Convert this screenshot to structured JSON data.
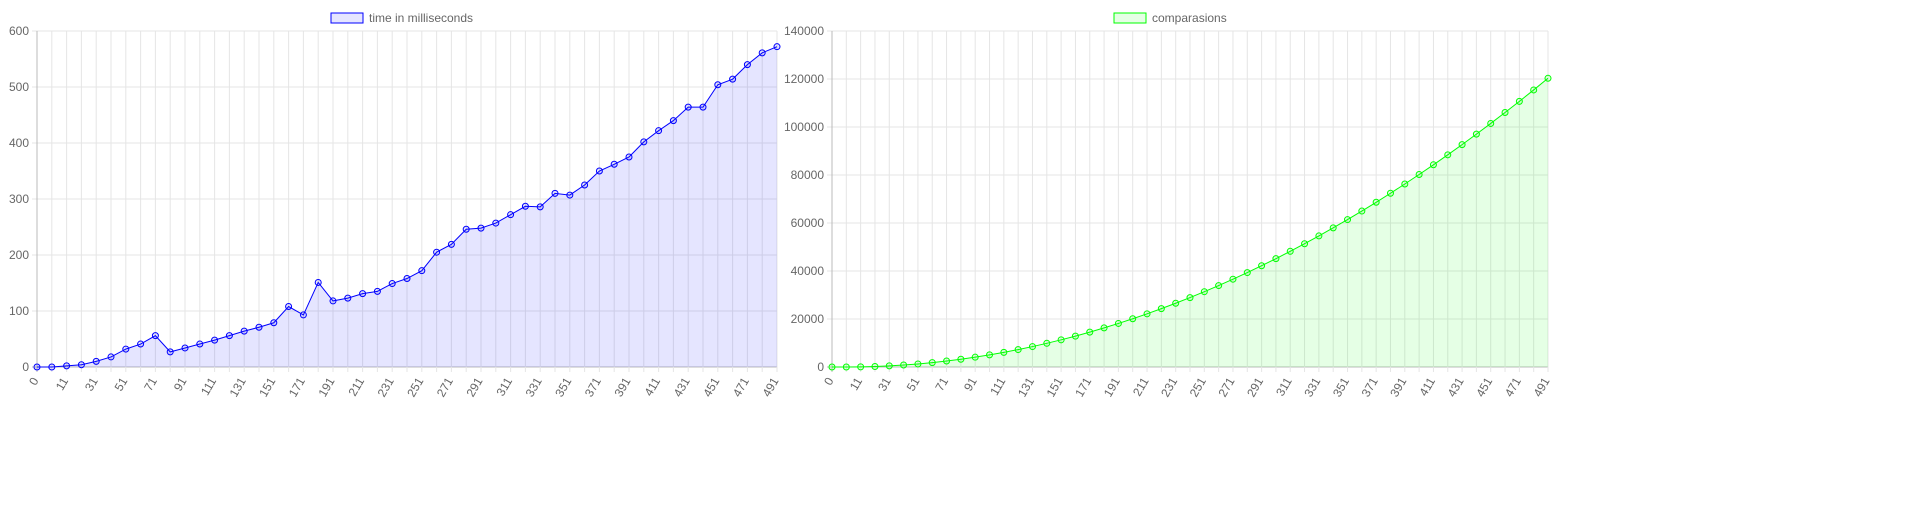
{
  "chart_data": [
    {
      "type": "line",
      "categories": [
        0,
        null,
        11,
        null,
        31,
        null,
        51,
        null,
        71,
        null,
        91,
        null,
        111,
        null,
        131,
        null,
        151,
        null,
        171,
        null,
        191,
        null,
        211,
        null,
        231,
        null,
        251,
        null,
        271,
        null,
        291,
        null,
        311,
        null,
        331,
        null,
        351,
        null,
        371,
        null,
        391,
        null,
        411,
        null,
        431,
        null,
        451,
        null,
        471,
        null,
        491
      ],
      "series": [
        {
          "name": "time in milliseconds",
          "color": "#0000ff",
          "values": [
            0,
            0,
            2,
            4,
            10,
            18,
            32,
            41,
            56,
            27,
            34,
            41,
            48,
            56,
            64,
            71,
            79,
            108,
            93,
            151,
            118,
            123,
            131,
            135,
            149,
            158,
            172,
            205,
            219,
            246,
            248,
            257,
            272,
            287,
            286,
            310,
            307,
            325,
            350,
            362,
            375,
            402,
            422,
            440,
            464,
            464,
            504,
            514,
            540,
            561,
            572
          ]
        }
      ],
      "ylim": [
        0,
        600
      ],
      "yticks": [
        0,
        100,
        200,
        300,
        400,
        500,
        600
      ],
      "grid": true
    },
    {
      "type": "line",
      "categories": [
        0,
        null,
        11,
        null,
        31,
        null,
        51,
        null,
        71,
        null,
        91,
        null,
        111,
        null,
        131,
        null,
        151,
        null,
        171,
        null,
        191,
        null,
        211,
        null,
        231,
        null,
        251,
        null,
        271,
        null,
        291,
        null,
        311,
        null,
        331,
        null,
        351,
        null,
        371,
        null,
        391,
        null,
        411,
        null,
        431,
        null,
        451,
        null,
        471,
        null,
        491
      ],
      "series": [
        {
          "name": "comparasions",
          "color": "#00ff00",
          "values": [
            0,
            0,
            55,
            210,
            465,
            820,
            1275,
            1830,
            2485,
            3240,
            4095,
            5050,
            6105,
            7260,
            8515,
            9870,
            11325,
            12880,
            14535,
            16290,
            18145,
            20100,
            22155,
            24310,
            26565,
            28920,
            31375,
            33930,
            36585,
            39340,
            42195,
            45150,
            48205,
            51360,
            54615,
            57970,
            61425,
            64980,
            68635,
            72390,
            76245,
            80200,
            84255,
            88410,
            92665,
            97020,
            101475,
            106030,
            110685,
            115440,
            120295
          ]
        }
      ],
      "ylim": [
        0,
        140000
      ],
      "yticks": [
        0,
        20000,
        40000,
        60000,
        80000,
        100000,
        120000,
        140000
      ],
      "grid": true
    }
  ]
}
